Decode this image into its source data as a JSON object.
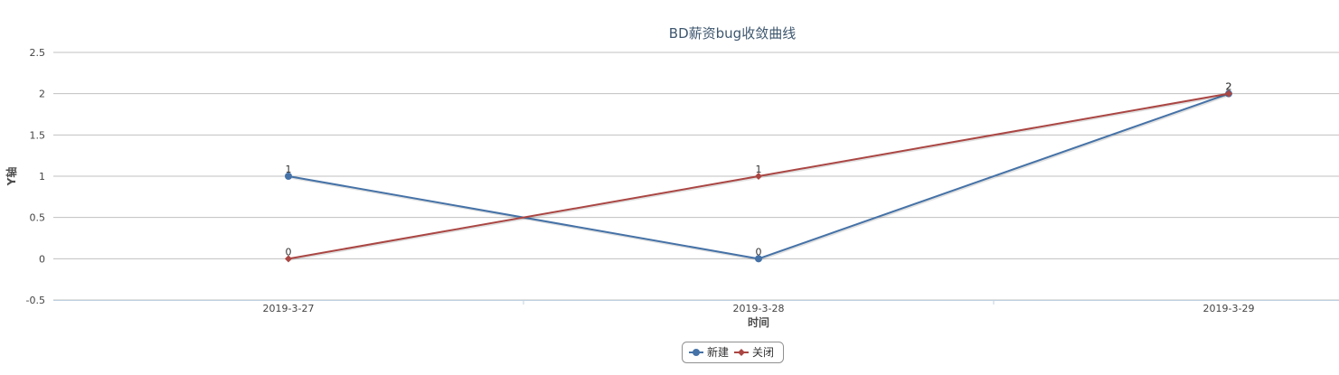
{
  "chart_data": {
    "type": "line",
    "title": "BD薪资bug收敛曲线",
    "xlabel": "时间",
    "ylabel": "Y轴",
    "categories": [
      "2019-3-27",
      "2019-3-28",
      "2019-3-29"
    ],
    "ylim": [
      -0.5,
      2.5
    ],
    "yticks": [
      "-0.5",
      "0",
      "0.5",
      "1",
      "1.5",
      "2",
      "2.5"
    ],
    "grid": true,
    "legend_position": "bottom-center",
    "series": [
      {
        "name": "新建",
        "values": [
          1,
          0,
          2
        ],
        "color": "#4572a7",
        "marker": "circle"
      },
      {
        "name": "关闭",
        "values": [
          0,
          1,
          2
        ],
        "color": "#aa4643",
        "marker": "diamond"
      }
    ]
  }
}
